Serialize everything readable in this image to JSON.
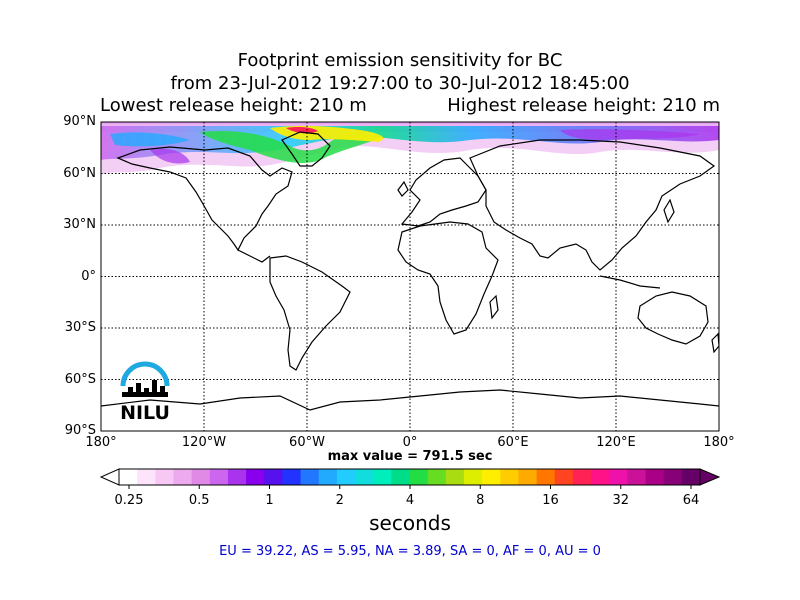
{
  "title": {
    "line1": "Footprint emission sensitivity for BC",
    "line2": "from 23-Jul-2012 19:27:00 to 30-Jul-2012 18:45:00",
    "lowest": "Lowest release height: 210 m",
    "highest": "Highest release height: 210 m"
  },
  "axes": {
    "lat_labels": [
      "90°N",
      "60°N",
      "30°N",
      "0°",
      "30°S",
      "60°S",
      "90°S"
    ],
    "lat_values": [
      90,
      60,
      30,
      0,
      -30,
      -60,
      -90
    ],
    "lon_labels": [
      "180°",
      "120°W",
      "60°W",
      "0°",
      "60°E",
      "120°E",
      "180°"
    ],
    "lon_values": [
      -180,
      -120,
      -60,
      0,
      60,
      120,
      180
    ]
  },
  "max_value_text": "max value = 791.5 sec",
  "colorbar": {
    "ticks": [
      "0.25",
      "0.5",
      "1",
      "2",
      "4",
      "8",
      "16",
      "32",
      "64"
    ],
    "units": "seconds",
    "colors": [
      "#ffffff",
      "#fde4fb",
      "#f7c8f3",
      "#eeaaee",
      "#e08ae6",
      "#cc66ee",
      "#aa33ee",
      "#8800ee",
      "#5511ee",
      "#2233ff",
      "#2277ff",
      "#22aaff",
      "#22ccff",
      "#11dddd",
      "#00eebb",
      "#00dd88",
      "#22dd44",
      "#66dd22",
      "#aadd11",
      "#ddee00",
      "#ffee00",
      "#ffcc00",
      "#ffaa00",
      "#ff7700",
      "#ff4422",
      "#ff2255",
      "#ff1188",
      "#ee11aa",
      "#cc1199",
      "#aa0088",
      "#880077",
      "#660066"
    ]
  },
  "logo": {
    "text": "NILU"
  },
  "summary": "EU = 39.22,  AS = 5.95,  NA = 3.89,  SA = 0,  AF = 0,  AU = 0"
}
